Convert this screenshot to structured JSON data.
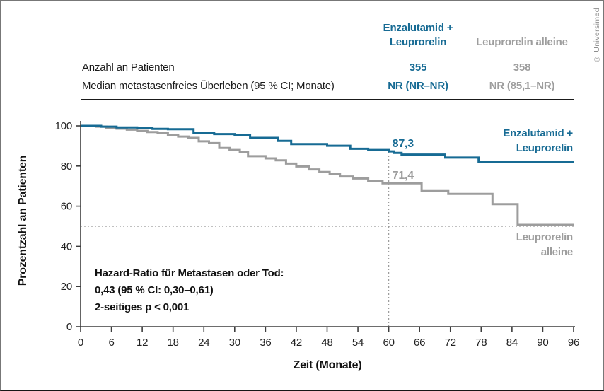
{
  "credit": "© Universimed",
  "colors": {
    "enzalutamid_blue": "#176b94",
    "leuprorelin_gray": "#9d9d9d",
    "axis": "#3d3d3d",
    "reference_dotted": "#9a9a9a",
    "text": "#1a1a1a"
  },
  "summary_table": {
    "columns": [
      {
        "name": "Enzalutamid + Leuprorelin",
        "header_lines": [
          "Enzalutamid +",
          "Leuprorelin"
        ]
      },
      {
        "name": "Leuprorelin alleine",
        "header_lines": [
          "Leuprorelin alleine"
        ]
      }
    ],
    "rows": [
      {
        "label": "Anzahl an Patienten",
        "values": [
          "355",
          "358"
        ]
      },
      {
        "label": "Median metastasenfreies Überleben (95 % CI; Monate)",
        "values": [
          "NR (NR–NR)",
          "NR (85,1–NR)"
        ]
      }
    ]
  },
  "chart_data": {
    "type": "line",
    "subtype": "kaplan-meier-step",
    "title": "",
    "xlabel": "Zeit (Monate)",
    "ylabel": "Prozentzahl an Patienten",
    "xlim": [
      0,
      96
    ],
    "ylim": [
      0,
      100
    ],
    "xticks": [
      0,
      6,
      12,
      18,
      24,
      30,
      36,
      42,
      48,
      54,
      60,
      66,
      72,
      78,
      84,
      90,
      96
    ],
    "yticks": [
      0,
      20,
      40,
      60,
      80,
      100
    ],
    "grid": false,
    "legend_position": "inline-right",
    "series": [
      {
        "name": "Enzalutamid + Leuprorelin",
        "label_lines": [
          "Enzalutamid +",
          "Leuprorelin"
        ],
        "color": "#176b94",
        "points": [
          [
            0,
            100
          ],
          [
            4,
            99.6
          ],
          [
            7,
            99.2
          ],
          [
            11,
            98.8
          ],
          [
            14,
            98.5
          ],
          [
            17,
            98.3
          ],
          [
            22,
            96.4
          ],
          [
            26,
            95.9
          ],
          [
            30,
            95.4
          ],
          [
            33,
            94.0
          ],
          [
            38.5,
            92.5
          ],
          [
            41,
            90.9
          ],
          [
            48,
            90.1
          ],
          [
            52.5,
            88.6
          ],
          [
            56,
            88.0
          ],
          [
            60,
            87.3
          ],
          [
            61,
            86.5
          ],
          [
            62.5,
            85.7
          ],
          [
            71,
            84.2
          ],
          [
            77.5,
            81.9
          ],
          [
            96,
            81.9
          ]
        ]
      },
      {
        "name": "Leuprorelin alleine",
        "label_lines": [
          "Leuprorelin",
          "alleine"
        ],
        "color": "#9d9d9d",
        "points": [
          [
            0,
            100
          ],
          [
            3,
            99.6
          ],
          [
            5,
            99.1
          ],
          [
            7,
            98.6
          ],
          [
            9,
            98.1
          ],
          [
            11,
            97.5
          ],
          [
            13,
            96.9
          ],
          [
            15,
            96.3
          ],
          [
            17,
            95.4
          ],
          [
            19,
            94.7
          ],
          [
            21,
            94.0
          ],
          [
            23,
            92.3
          ],
          [
            25,
            91.4
          ],
          [
            27,
            89.0
          ],
          [
            29,
            88.0
          ],
          [
            31,
            87.0
          ],
          [
            32.6,
            84.9
          ],
          [
            36,
            83.8
          ],
          [
            38,
            82.8
          ],
          [
            40,
            81.2
          ],
          [
            42,
            79.8
          ],
          [
            44.5,
            78.3
          ],
          [
            46.5,
            77.0
          ],
          [
            48.5,
            76.0
          ],
          [
            50.5,
            74.8
          ],
          [
            53,
            73.8
          ],
          [
            56,
            72.5
          ],
          [
            58.8,
            71.4
          ],
          [
            66.4,
            67.5
          ],
          [
            71.6,
            66.1
          ],
          [
            80.2,
            61.0
          ],
          [
            85.1,
            50.7
          ],
          [
            96,
            50.7
          ]
        ]
      }
    ],
    "annotations": [
      {
        "text": "87,3",
        "x": 60,
        "y": 87.3,
        "series": "Enzalutamid + Leuprorelin",
        "color": "#176b94"
      },
      {
        "text": "71,4",
        "x": 60,
        "y": 71.4,
        "series": "Leuprorelin alleine",
        "color": "#9d9d9d"
      }
    ],
    "reference_lines": {
      "horizontal_y": 50,
      "vertical_x": 60
    },
    "note_lines": [
      "Hazard-Ratio für Metastasen oder Tod:",
      "0,43 (95 % CI: 0,30–0,61)",
      "2-seitiges p < 0,001"
    ]
  }
}
